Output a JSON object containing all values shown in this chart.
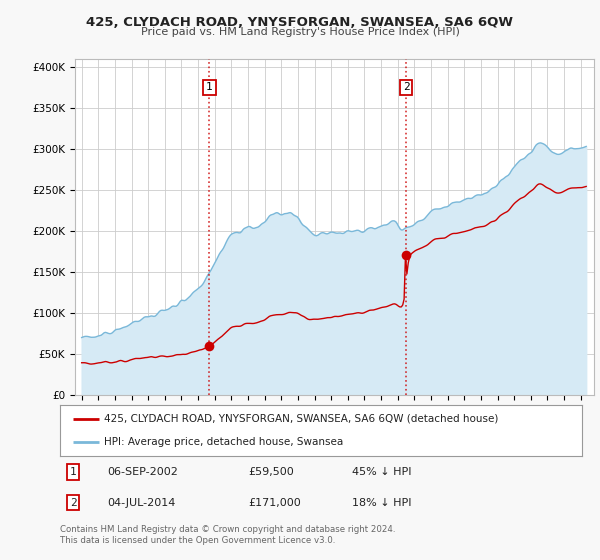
{
  "title": "425, CLYDACH ROAD, YNYSFORGAN, SWANSEA, SA6 6QW",
  "subtitle": "Price paid vs. HM Land Registry's House Price Index (HPI)",
  "bg_color": "#f8f8f8",
  "plot_bg_color": "#ffffff",
  "hpi_color": "#7ab8d9",
  "hpi_fill_color": "#d6eaf5",
  "price_color": "#cc0000",
  "vline_color": "#cc0000",
  "ylabel_ticks": [
    "£0",
    "£50K",
    "£100K",
    "£150K",
    "£200K",
    "£250K",
    "£300K",
    "£350K",
    "£400K"
  ],
  "ytick_vals": [
    0,
    50000,
    100000,
    150000,
    200000,
    250000,
    300000,
    350000,
    400000
  ],
  "ylim": [
    0,
    410000
  ],
  "xlim_left": 1994.6,
  "xlim_right": 2025.8,
  "sale1_date": 2002.68,
  "sale1_price": 59500,
  "sale2_date": 2014.5,
  "sale2_price": 171000,
  "legend_property": "425, CLYDACH ROAD, YNYSFORGAN, SWANSEA, SA6 6QW (detached house)",
  "legend_hpi": "HPI: Average price, detached house, Swansea",
  "footnote": "Contains HM Land Registry data © Crown copyright and database right 2024.\nThis data is licensed under the Open Government Licence v3.0.",
  "table": [
    {
      "num": "1",
      "date": "06-SEP-2002",
      "price": "£59,500",
      "rel": "45% ↓ HPI"
    },
    {
      "num": "2",
      "date": "04-JUL-2014",
      "price": "£171,000",
      "rel": "18% ↓ HPI"
    }
  ]
}
